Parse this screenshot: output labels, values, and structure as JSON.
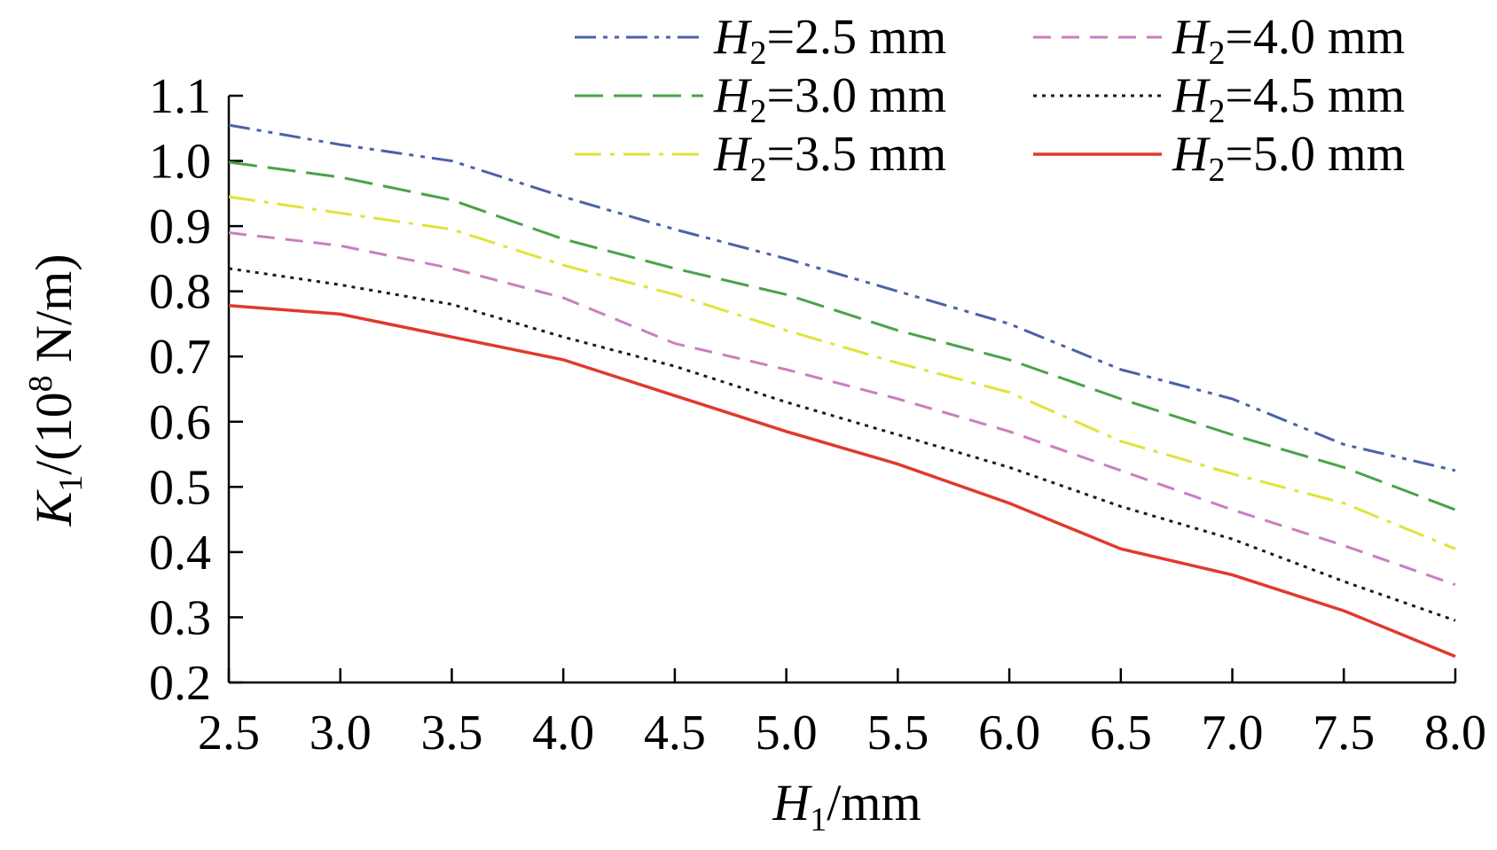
{
  "chart_data": {
    "type": "line",
    "x": [
      2.5,
      3.0,
      3.5,
      4.0,
      4.5,
      5.0,
      5.5,
      6.0,
      6.5,
      7.0,
      7.5,
      8.0
    ],
    "xticks": [
      "2.5",
      "3.0",
      "3.5",
      "4.0",
      "4.5",
      "5.0",
      "5.5",
      "6.0",
      "6.5",
      "7.0",
      "7.5",
      "8.0"
    ],
    "yticks": [
      "0.2",
      "0.3",
      "0.4",
      "0.5",
      "0.6",
      "0.7",
      "0.8",
      "0.9",
      "1.0",
      "1.1"
    ],
    "xlim": [
      2.5,
      8.0
    ],
    "ylim": [
      0.2,
      1.1
    ],
    "xlabel": {
      "main": "H",
      "sub": "1",
      "rest": "/mm"
    },
    "ylabel": {
      "main": "K",
      "sub": "1",
      "rest1": "/(10",
      "sup": "8",
      "rest2": " N/m)"
    },
    "grid": false,
    "legend_position": "top-right",
    "series": [
      {
        "name": "H2=2.5 mm",
        "label": {
          "main": "H",
          "sub": "2",
          "rest": "=2.5 mm"
        },
        "color": "#4a62a8",
        "dash": "dashdotdot",
        "values": [
          1.055,
          1.025,
          1.0,
          0.945,
          0.895,
          0.85,
          0.8,
          0.75,
          0.68,
          0.635,
          0.565,
          0.525
        ]
      },
      {
        "name": "H2=3.0 mm",
        "label": {
          "main": "H",
          "sub": "2",
          "rest": "=3.0 mm"
        },
        "color": "#4aa24a",
        "dash": "longdash",
        "values": [
          0.998,
          0.975,
          0.94,
          0.88,
          0.835,
          0.795,
          0.74,
          0.695,
          0.635,
          0.58,
          0.53,
          0.465
        ]
      },
      {
        "name": "H2=3.5 mm",
        "label": {
          "main": "H",
          "sub": "2",
          "rest": "=3.5 mm"
        },
        "color": "#e2e23a",
        "dash": "dashdot",
        "values": [
          0.945,
          0.92,
          0.895,
          0.84,
          0.795,
          0.74,
          0.69,
          0.645,
          0.57,
          0.52,
          0.475,
          0.405
        ]
      },
      {
        "name": "H2=4.0 mm",
        "label": {
          "main": "H",
          "sub": "2",
          "rest": "=4.0 mm"
        },
        "color": "#c97fbf",
        "dash": "dash",
        "values": [
          0.89,
          0.87,
          0.835,
          0.79,
          0.72,
          0.68,
          0.635,
          0.585,
          0.525,
          0.465,
          0.41,
          0.35
        ]
      },
      {
        "name": "H2=4.5 mm",
        "label": {
          "main": "H",
          "sub": "2",
          "rest": "=4.5 mm"
        },
        "color": "#1a1a1a",
        "dash": "dot",
        "values": [
          0.835,
          0.81,
          0.78,
          0.73,
          0.685,
          0.63,
          0.58,
          0.53,
          0.47,
          0.42,
          0.355,
          0.295
        ]
      },
      {
        "name": "H2=5.0 mm",
        "label": {
          "main": "H",
          "sub": "2",
          "rest": "=5.0 mm"
        },
        "color": "#e03a2c",
        "dash": "solid",
        "values": [
          0.778,
          0.765,
          0.73,
          0.695,
          0.64,
          0.585,
          0.535,
          0.475,
          0.405,
          0.365,
          0.31,
          0.24
        ]
      }
    ]
  }
}
